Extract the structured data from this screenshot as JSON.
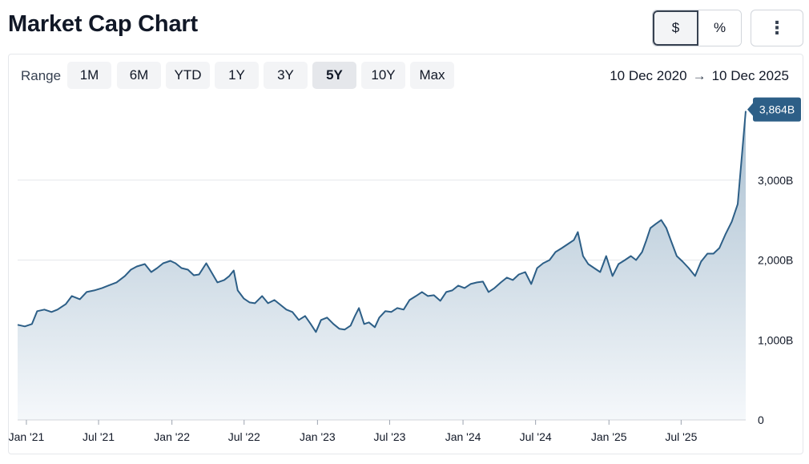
{
  "header": {
    "title": "Market Cap Chart"
  },
  "unit_toggle": [
    {
      "label": "$",
      "active": true
    },
    {
      "label": "%",
      "active": false
    }
  ],
  "more_icon": "⋮",
  "range": {
    "label": "Range",
    "buttons": [
      {
        "label": "1M",
        "active": false
      },
      {
        "label": "6M",
        "active": false
      },
      {
        "label": "YTD",
        "active": false
      },
      {
        "label": "1Y",
        "active": false
      },
      {
        "label": "3Y",
        "active": false
      },
      {
        "label": "5Y",
        "active": true
      },
      {
        "label": "10Y",
        "active": false
      },
      {
        "label": "Max",
        "active": false
      }
    ],
    "start": "10 Dec 2020",
    "arrow": "→",
    "end": "10 Dec 2025"
  },
  "colors": {
    "line": "#2d5f87",
    "fill_top": "#a9bfd0",
    "fill_bottom": "#f5f8fb",
    "tag": "#2d5f87",
    "grid": "#e5e7eb"
  },
  "chart_data": {
    "type": "area",
    "unit": "B",
    "y_ticks": [
      {
        "value": 0,
        "label": "0"
      },
      {
        "value": 1000,
        "label": "1,000B"
      },
      {
        "value": 2000,
        "label": "2,000B"
      },
      {
        "value": 3000,
        "label": "3,000B"
      }
    ],
    "ylim": [
      0,
      4000
    ],
    "xlim": [
      "2020-12-10",
      "2025-12-10"
    ],
    "x_ticks": [
      {
        "date": "2021-01-01",
        "label": "Jan '21"
      },
      {
        "date": "2021-07-01",
        "label": "Jul '21"
      },
      {
        "date": "2022-01-01",
        "label": "Jan '22"
      },
      {
        "date": "2022-07-01",
        "label": "Jul '22"
      },
      {
        "date": "2023-01-01",
        "label": "Jan '23"
      },
      {
        "date": "2023-07-01",
        "label": "Jul '23"
      },
      {
        "date": "2024-01-01",
        "label": "Jan '24"
      },
      {
        "date": "2024-07-01",
        "label": "Jul '24"
      },
      {
        "date": "2025-01-01",
        "label": "Jan '25"
      },
      {
        "date": "2025-07-01",
        "label": "Jul '25"
      }
    ],
    "last_value_label": "3,864B",
    "points": [
      [
        "2020-12-10",
        1190
      ],
      [
        "2020-12-28",
        1170
      ],
      [
        "2021-01-15",
        1200
      ],
      [
        "2021-01-28",
        1360
      ],
      [
        "2021-02-15",
        1380
      ],
      [
        "2021-03-05",
        1350
      ],
      [
        "2021-03-20",
        1380
      ],
      [
        "2021-04-10",
        1450
      ],
      [
        "2021-04-25",
        1550
      ],
      [
        "2021-05-15",
        1510
      ],
      [
        "2021-06-01",
        1600
      ],
      [
        "2021-06-20",
        1620
      ],
      [
        "2021-07-10",
        1650
      ],
      [
        "2021-07-25",
        1680
      ],
      [
        "2021-08-15",
        1720
      ],
      [
        "2021-09-05",
        1800
      ],
      [
        "2021-09-20",
        1880
      ],
      [
        "2021-10-05",
        1920
      ],
      [
        "2021-10-25",
        1950
      ],
      [
        "2021-11-10",
        1850
      ],
      [
        "2021-11-25",
        1900
      ],
      [
        "2021-12-10",
        1960
      ],
      [
        "2021-12-28",
        1990
      ],
      [
        "2022-01-10",
        1960
      ],
      [
        "2022-01-25",
        1900
      ],
      [
        "2022-02-10",
        1880
      ],
      [
        "2022-02-25",
        1810
      ],
      [
        "2022-03-10",
        1820
      ],
      [
        "2022-03-28",
        1960
      ],
      [
        "2022-04-10",
        1850
      ],
      [
        "2022-04-25",
        1720
      ],
      [
        "2022-05-12",
        1750
      ],
      [
        "2022-05-25",
        1800
      ],
      [
        "2022-06-05",
        1870
      ],
      [
        "2022-06-15",
        1620
      ],
      [
        "2022-06-30",
        1520
      ],
      [
        "2022-07-15",
        1470
      ],
      [
        "2022-07-28",
        1460
      ],
      [
        "2022-08-15",
        1550
      ],
      [
        "2022-08-30",
        1460
      ],
      [
        "2022-09-15",
        1500
      ],
      [
        "2022-09-30",
        1440
      ],
      [
        "2022-10-15",
        1380
      ],
      [
        "2022-10-30",
        1350
      ],
      [
        "2022-11-15",
        1250
      ],
      [
        "2022-12-01",
        1300
      ],
      [
        "2022-12-15",
        1200
      ],
      [
        "2022-12-28",
        1100
      ],
      [
        "2023-01-10",
        1250
      ],
      [
        "2023-01-25",
        1280
      ],
      [
        "2023-02-10",
        1200
      ],
      [
        "2023-02-25",
        1140
      ],
      [
        "2023-03-10",
        1130
      ],
      [
        "2023-03-25",
        1180
      ],
      [
        "2023-04-05",
        1300
      ],
      [
        "2023-04-15",
        1400
      ],
      [
        "2023-04-28",
        1200
      ],
      [
        "2023-05-10",
        1220
      ],
      [
        "2023-05-25",
        1160
      ],
      [
        "2023-06-05",
        1280
      ],
      [
        "2023-06-20",
        1360
      ],
      [
        "2023-07-05",
        1350
      ],
      [
        "2023-07-20",
        1400
      ],
      [
        "2023-08-05",
        1380
      ],
      [
        "2023-08-20",
        1500
      ],
      [
        "2023-09-05",
        1550
      ],
      [
        "2023-09-20",
        1600
      ],
      [
        "2023-10-05",
        1550
      ],
      [
        "2023-10-20",
        1560
      ],
      [
        "2023-11-05",
        1490
      ],
      [
        "2023-11-20",
        1600
      ],
      [
        "2023-12-05",
        1620
      ],
      [
        "2023-12-20",
        1680
      ],
      [
        "2024-01-05",
        1650
      ],
      [
        "2024-01-20",
        1700
      ],
      [
        "2024-02-05",
        1720
      ],
      [
        "2024-02-20",
        1730
      ],
      [
        "2024-03-05",
        1600
      ],
      [
        "2024-03-20",
        1650
      ],
      [
        "2024-04-05",
        1720
      ],
      [
        "2024-04-20",
        1780
      ],
      [
        "2024-05-05",
        1750
      ],
      [
        "2024-05-20",
        1820
      ],
      [
        "2024-06-05",
        1850
      ],
      [
        "2024-06-20",
        1700
      ],
      [
        "2024-07-05",
        1900
      ],
      [
        "2024-07-20",
        1960
      ],
      [
        "2024-08-05",
        2000
      ],
      [
        "2024-08-20",
        2100
      ],
      [
        "2024-09-05",
        2150
      ],
      [
        "2024-09-20",
        2200
      ],
      [
        "2024-10-05",
        2250
      ],
      [
        "2024-10-15",
        2350
      ],
      [
        "2024-10-28",
        2050
      ],
      [
        "2024-11-10",
        1950
      ],
      [
        "2024-11-25",
        1900
      ],
      [
        "2024-12-10",
        1850
      ],
      [
        "2024-12-25",
        2050
      ],
      [
        "2025-01-10",
        1800
      ],
      [
        "2025-01-25",
        1950
      ],
      [
        "2025-02-10",
        2000
      ],
      [
        "2025-02-25",
        2050
      ],
      [
        "2025-03-10",
        2000
      ],
      [
        "2025-03-25",
        2100
      ],
      [
        "2025-04-05",
        2250
      ],
      [
        "2025-04-15",
        2400
      ],
      [
        "2025-04-28",
        2450
      ],
      [
        "2025-05-12",
        2500
      ],
      [
        "2025-05-25",
        2400
      ],
      [
        "2025-06-05",
        2250
      ],
      [
        "2025-06-20",
        2050
      ],
      [
        "2025-07-05",
        1980
      ],
      [
        "2025-07-20",
        1900
      ],
      [
        "2025-08-05",
        1800
      ],
      [
        "2025-08-20",
        1980
      ],
      [
        "2025-09-05",
        2080
      ],
      [
        "2025-09-20",
        2080
      ],
      [
        "2025-10-05",
        2150
      ],
      [
        "2025-10-20",
        2320
      ],
      [
        "2025-11-05",
        2480
      ],
      [
        "2025-11-20",
        2700
      ],
      [
        "2025-12-10",
        3864
      ]
    ]
  }
}
